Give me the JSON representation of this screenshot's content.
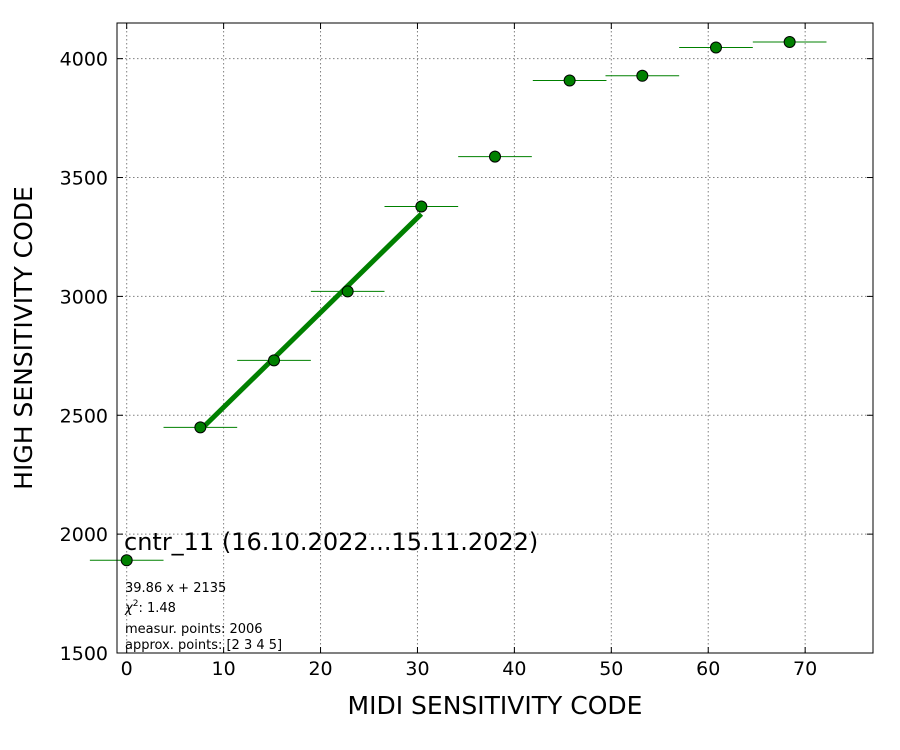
{
  "chart_data": {
    "type": "scatter",
    "title": "",
    "xlabel": "MIDI SENSITIVITY CODE",
    "ylabel": "HIGH SENSITIVITY CODE",
    "xlim": [
      -1,
      77
    ],
    "ylim": [
      1500,
      4150
    ],
    "xticks": [
      0,
      10,
      20,
      30,
      40,
      50,
      60,
      70
    ],
    "yticks": [
      1500,
      2000,
      2500,
      3000,
      3500,
      4000
    ],
    "grid": true,
    "colors": {
      "marker": "#008000",
      "marker_edge": "#000000",
      "fit_line": "#008000",
      "grid": "#808080"
    },
    "points": [
      {
        "x": 0.0,
        "y": 1890,
        "xerr": 3.8,
        "yerr": 0
      },
      {
        "x": 7.6,
        "y": 2449,
        "xerr": 3.8,
        "yerr": 8
      },
      {
        "x": 15.2,
        "y": 2731,
        "xerr": 3.8,
        "yerr": 8
      },
      {
        "x": 22.8,
        "y": 3021,
        "xerr": 3.8,
        "yerr": 10
      },
      {
        "x": 30.4,
        "y": 3378,
        "xerr": 3.8,
        "yerr": 20
      },
      {
        "x": 38.0,
        "y": 3588,
        "xerr": 3.8,
        "yerr": 25
      },
      {
        "x": 45.7,
        "y": 3908,
        "xerr": 3.8,
        "yerr": 8
      },
      {
        "x": 53.2,
        "y": 3928,
        "xerr": 3.8,
        "yerr": 20
      },
      {
        "x": 60.8,
        "y": 4047,
        "xerr": 3.8,
        "yerr": 8
      },
      {
        "x": 68.4,
        "y": 4070,
        "xerr": 3.8,
        "yerr": 8
      }
    ],
    "fit": {
      "slope": 39.86,
      "intercept": 2135,
      "x_range": [
        7.6,
        30.4
      ]
    },
    "annotation": {
      "title": "cntr_11 (16.10.2022...15.11.2022)",
      "equation": "39.86 x + 2135",
      "chi2_label": ": 1.48",
      "measur_points": "measur. points: 2006",
      "approx_points": "approx. points: [2 3 4 5]"
    }
  }
}
